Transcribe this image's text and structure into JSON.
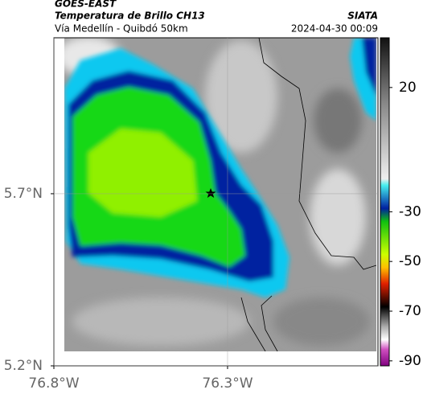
{
  "header": {
    "title": "GOES-EAST",
    "subtitle": "Temperatura de Brillo CH13",
    "region": "Vía Medellín - Quibdó 50km",
    "source": "SIATA",
    "timestamp": "2024-04-30 00:09"
  },
  "map": {
    "xlim": [
      -76.8,
      -75.867
    ],
    "ylim": [
      5.2,
      6.153
    ],
    "xticks": [
      {
        "value": -76.8,
        "label": "76.8°W"
      },
      {
        "value": -76.3,
        "label": "76.3°W"
      }
    ],
    "yticks": [
      {
        "value": 5.2,
        "label": "5.2°N"
      },
      {
        "value": 5.7,
        "label": "5.7°N"
      }
    ],
    "grid": true
  },
  "colorbar": {
    "clim": [
      -92,
      40
    ],
    "ticks": [
      20,
      -30,
      -50,
      -70,
      -90
    ]
  }
}
